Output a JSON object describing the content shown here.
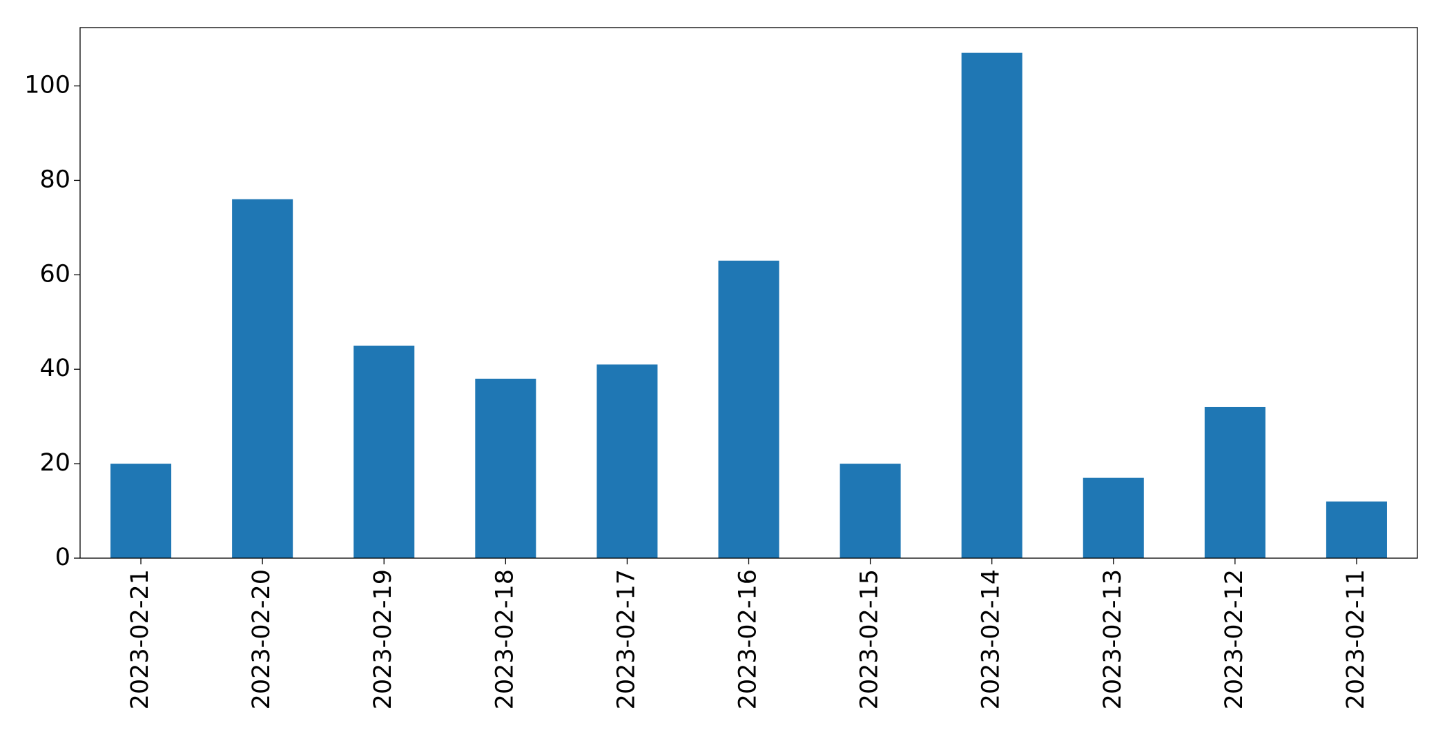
{
  "chart_data": {
    "type": "bar",
    "categories": [
      "2023-02-21",
      "2023-02-20",
      "2023-02-19",
      "2023-02-18",
      "2023-02-17",
      "2023-02-16",
      "2023-02-15",
      "2023-02-14",
      "2023-02-13",
      "2023-02-12",
      "2023-02-11"
    ],
    "values": [
      20,
      76,
      45,
      38,
      41,
      63,
      20,
      107,
      17,
      32,
      12
    ],
    "color": "#1f77b4",
    "ylim": [
      0,
      112.35
    ],
    "yticks": [
      0,
      20,
      40,
      60,
      80,
      100
    ],
    "grid": false
  }
}
